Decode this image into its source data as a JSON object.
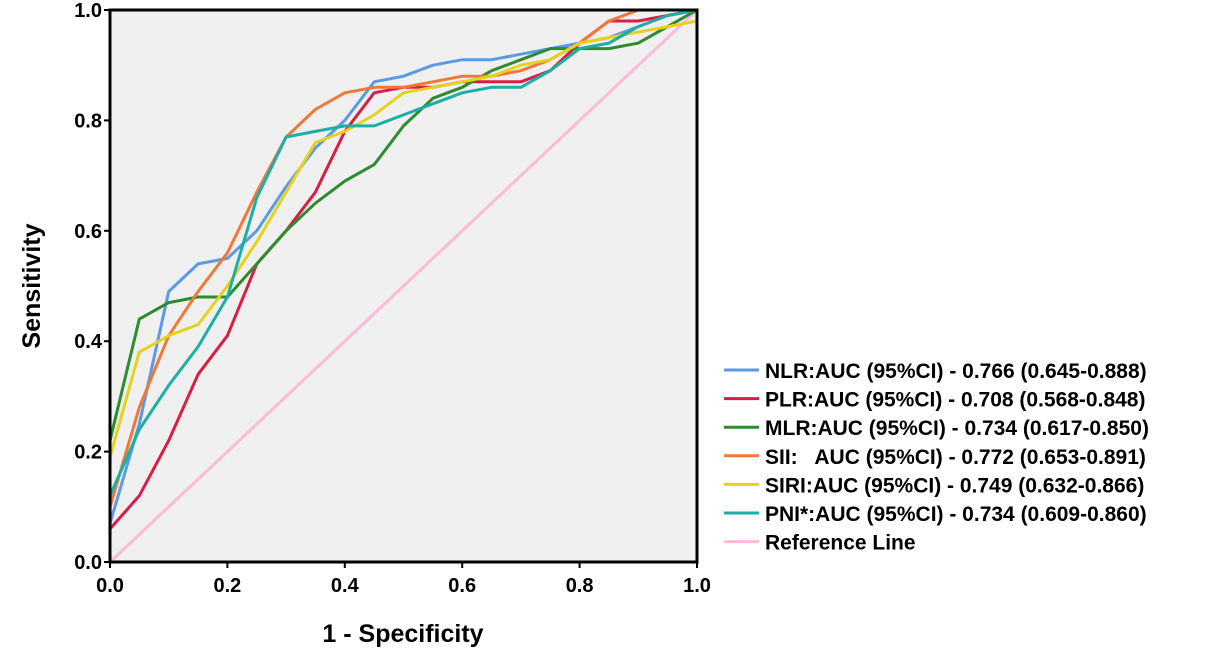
{
  "chart_data": {
    "type": "line",
    "title": "",
    "xlabel": "1 - Specificity",
    "ylabel": "Sensitivity",
    "xlim": [
      0,
      1
    ],
    "ylim": [
      0,
      1
    ],
    "xticks": [
      "0.0",
      "0.2",
      "0.4",
      "0.6",
      "0.8",
      "1.0"
    ],
    "yticks": [
      "0.0",
      "0.2",
      "0.4",
      "0.6",
      "0.8",
      "1.0"
    ],
    "plot_background": "#f0f0f0",
    "grid": false,
    "legend_position": "right",
    "series": [
      {
        "name": "NLR:AUC (95%CI) - 0.766 (0.645-0.888)",
        "color": "#5b9ae6",
        "points": [
          [
            0,
            0.07
          ],
          [
            0.05,
            0.25
          ],
          [
            0.1,
            0.49
          ],
          [
            0.15,
            0.54
          ],
          [
            0.2,
            0.55
          ],
          [
            0.25,
            0.6
          ],
          [
            0.3,
            0.68
          ],
          [
            0.35,
            0.75
          ],
          [
            0.4,
            0.8
          ],
          [
            0.45,
            0.87
          ],
          [
            0.5,
            0.88
          ],
          [
            0.55,
            0.9
          ],
          [
            0.6,
            0.91
          ],
          [
            0.65,
            0.91
          ],
          [
            0.7,
            0.92
          ],
          [
            0.75,
            0.93
          ],
          [
            0.8,
            0.94
          ],
          [
            0.85,
            0.95
          ],
          [
            0.9,
            0.97
          ],
          [
            0.95,
            0.99
          ],
          [
            1,
            1
          ]
        ]
      },
      {
        "name": "PLR:AUC (95%CI) - 0.708 (0.568-0.848)",
        "color": "#d91e45",
        "points": [
          [
            0,
            0.06
          ],
          [
            0.05,
            0.12
          ],
          [
            0.1,
            0.22
          ],
          [
            0.15,
            0.34
          ],
          [
            0.2,
            0.41
          ],
          [
            0.25,
            0.54
          ],
          [
            0.3,
            0.6
          ],
          [
            0.35,
            0.67
          ],
          [
            0.4,
            0.78
          ],
          [
            0.45,
            0.85
          ],
          [
            0.5,
            0.86
          ],
          [
            0.55,
            0.86
          ],
          [
            0.6,
            0.87
          ],
          [
            0.65,
            0.87
          ],
          [
            0.7,
            0.87
          ],
          [
            0.75,
            0.89
          ],
          [
            0.8,
            0.94
          ],
          [
            0.85,
            0.98
          ],
          [
            0.9,
            0.98
          ],
          [
            0.95,
            0.99
          ],
          [
            1,
            1
          ]
        ]
      },
      {
        "name": "MLR:AUC (95%CI) - 0.734 (0.617-0.850)",
        "color": "#2e8b2e",
        "points": [
          [
            0,
            0.22
          ],
          [
            0.05,
            0.44
          ],
          [
            0.1,
            0.47
          ],
          [
            0.15,
            0.48
          ],
          [
            0.2,
            0.48
          ],
          [
            0.25,
            0.54
          ],
          [
            0.3,
            0.6
          ],
          [
            0.35,
            0.65
          ],
          [
            0.4,
            0.69
          ],
          [
            0.45,
            0.72
          ],
          [
            0.5,
            0.79
          ],
          [
            0.55,
            0.84
          ],
          [
            0.6,
            0.86
          ],
          [
            0.65,
            0.89
          ],
          [
            0.7,
            0.91
          ],
          [
            0.75,
            0.93
          ],
          [
            0.8,
            0.93
          ],
          [
            0.85,
            0.93
          ],
          [
            0.9,
            0.94
          ],
          [
            0.95,
            0.97
          ],
          [
            1,
            1
          ]
        ]
      },
      {
        "name": "SII:   AUC (95%CI) - 0.772 (0.653-0.891)",
        "color": "#f07838",
        "points": [
          [
            0,
            0.1
          ],
          [
            0.05,
            0.28
          ],
          [
            0.1,
            0.41
          ],
          [
            0.15,
            0.49
          ],
          [
            0.2,
            0.56
          ],
          [
            0.25,
            0.67
          ],
          [
            0.3,
            0.77
          ],
          [
            0.35,
            0.82
          ],
          [
            0.4,
            0.85
          ],
          [
            0.45,
            0.86
          ],
          [
            0.5,
            0.86
          ],
          [
            0.55,
            0.87
          ],
          [
            0.6,
            0.88
          ],
          [
            0.65,
            0.88
          ],
          [
            0.7,
            0.89
          ],
          [
            0.75,
            0.91
          ],
          [
            0.8,
            0.94
          ],
          [
            0.85,
            0.98
          ],
          [
            0.9,
            1
          ],
          [
            0.95,
            1
          ],
          [
            1,
            1
          ]
        ]
      },
      {
        "name": "SIRI:AUC (95%CI) - 0.749 (0.632-0.866)",
        "color": "#e6d21e",
        "points": [
          [
            0,
            0.19
          ],
          [
            0.05,
            0.38
          ],
          [
            0.1,
            0.41
          ],
          [
            0.15,
            0.43
          ],
          [
            0.2,
            0.5
          ],
          [
            0.25,
            0.58
          ],
          [
            0.3,
            0.67
          ],
          [
            0.35,
            0.76
          ],
          [
            0.4,
            0.78
          ],
          [
            0.45,
            0.81
          ],
          [
            0.5,
            0.85
          ],
          [
            0.55,
            0.86
          ],
          [
            0.6,
            0.87
          ],
          [
            0.65,
            0.88
          ],
          [
            0.7,
            0.9
          ],
          [
            0.75,
            0.91
          ],
          [
            0.8,
            0.94
          ],
          [
            0.85,
            0.95
          ],
          [
            0.9,
            0.96
          ],
          [
            0.95,
            0.97
          ],
          [
            1,
            0.98
          ]
        ]
      },
      {
        "name": "PNI*:AUC (95%CI) - 0.734 (0.609-0.860)",
        "color": "#1eaea6",
        "points": [
          [
            0,
            0.12
          ],
          [
            0.05,
            0.24
          ],
          [
            0.1,
            0.32
          ],
          [
            0.15,
            0.39
          ],
          [
            0.2,
            0.48
          ],
          [
            0.25,
            0.66
          ],
          [
            0.3,
            0.77
          ],
          [
            0.35,
            0.78
          ],
          [
            0.4,
            0.79
          ],
          [
            0.45,
            0.79
          ],
          [
            0.5,
            0.81
          ],
          [
            0.55,
            0.83
          ],
          [
            0.6,
            0.85
          ],
          [
            0.65,
            0.86
          ],
          [
            0.7,
            0.86
          ],
          [
            0.75,
            0.89
          ],
          [
            0.8,
            0.93
          ],
          [
            0.85,
            0.94
          ],
          [
            0.9,
            0.97
          ],
          [
            0.95,
            0.99
          ],
          [
            1,
            1
          ]
        ]
      },
      {
        "name": "Reference Line",
        "color": "#ffbbd6",
        "points": [
          [
            0,
            0
          ],
          [
            1,
            1
          ]
        ]
      }
    ]
  }
}
